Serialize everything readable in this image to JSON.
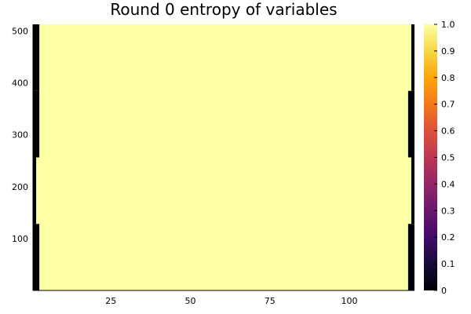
{
  "chart_data": {
    "type": "heatmap",
    "title": "Round 0 entropy of variables",
    "xlabel": "",
    "ylabel": "",
    "xlim": [
      0.5,
      120.5
    ],
    "ylim": [
      0.5,
      512.5
    ],
    "x_ticks": [
      25,
      50,
      75,
      100
    ],
    "y_ticks": [
      100,
      200,
      300,
      400,
      500
    ],
    "colorbar": {
      "colormap": "inferno",
      "range": [
        0,
        1
      ],
      "ticks": [
        0,
        0.1,
        0.2,
        0.3,
        0.4,
        0.5,
        0.6,
        0.7,
        0.8,
        0.9,
        1.0
      ],
      "tick_labels": [
        "0",
        "0.1",
        "0.2",
        "0.3",
        "0.4",
        "0.5",
        "0.6",
        "0.7",
        "0.8",
        "0.9",
        "1.0"
      ]
    },
    "interior_value": 1.0,
    "zero_regions": [
      {
        "x": [
          1,
          2
        ],
        "y": [
          1,
          128
        ],
        "value": 0
      },
      {
        "x": [
          1,
          1
        ],
        "y": [
          129,
          256
        ],
        "value": 0
      },
      {
        "x": [
          1,
          2
        ],
        "y": [
          257,
          384
        ],
        "value": 0
      },
      {
        "x": [
          1,
          2
        ],
        "y": [
          385,
          512
        ],
        "value": 0
      },
      {
        "x": [
          119,
          120
        ],
        "y": [
          1,
          128
        ],
        "value": 0
      },
      {
        "x": [
          120,
          120
        ],
        "y": [
          129,
          256
        ],
        "value": 0
      },
      {
        "x": [
          119,
          120
        ],
        "y": [
          257,
          384
        ],
        "value": 0
      },
      {
        "x": [
          120,
          120
        ],
        "y": [
          385,
          512
        ],
        "value": 0
      }
    ],
    "grid": false,
    "legend": "none"
  }
}
